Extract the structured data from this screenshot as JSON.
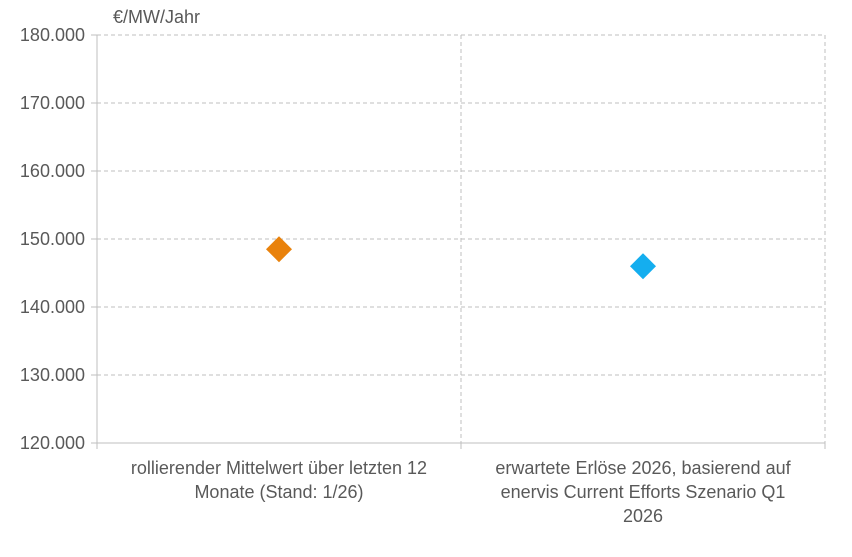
{
  "chart_data": {
    "type": "scatter",
    "unit_label": "€/MW/Jahr",
    "categories": [
      [
        "rollierender Mittelwert über letzten 12",
        "Monate (Stand: 1/26)"
      ],
      [
        "erwartete Erlöse 2026, basierend auf",
        "enervis Current Efforts Szenario Q1",
        "2026"
      ]
    ],
    "points": [
      {
        "category_index": 0,
        "value": 148500,
        "color": "#E9820C"
      },
      {
        "category_index": 1,
        "value": 146000,
        "color": "#14AEEF"
      }
    ],
    "ylim": [
      120000,
      180000
    ],
    "yticks": [
      120000,
      130000,
      140000,
      150000,
      160000,
      170000,
      180000
    ],
    "ytick_labels": [
      "120.000",
      "130.000",
      "140.000",
      "150.000",
      "160.000",
      "170.000",
      "180.000"
    ],
    "grid": true,
    "legend": "none",
    "colors": {
      "grid": "#BFBFBF",
      "text": "#595959",
      "axis": "#BFBFBF"
    }
  }
}
